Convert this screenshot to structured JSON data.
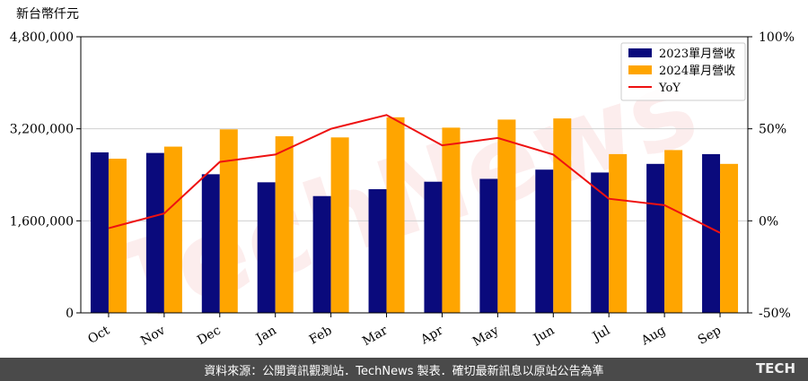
{
  "chart_data": {
    "type": "bar",
    "unit_label": "新台幣仟元",
    "categories": [
      "Oct",
      "Nov",
      "Dec",
      "Jan",
      "Feb",
      "Mar",
      "Apr",
      "May",
      "Jun",
      "Jul",
      "Aug",
      "Sep"
    ],
    "series": [
      {
        "name": "2023單月營收",
        "type": "bar",
        "axis": "left",
        "color": "#0a0a7c",
        "values": [
          2790000,
          2780000,
          2410000,
          2270000,
          2030000,
          2150000,
          2280000,
          2330000,
          2490000,
          2440000,
          2590000,
          2760000
        ]
      },
      {
        "name": "2024單月營收",
        "type": "bar",
        "axis": "left",
        "color": "#ffa500",
        "values": [
          2680000,
          2890000,
          3190000,
          3070000,
          3050000,
          3400000,
          3220000,
          3360000,
          3380000,
          2760000,
          2830000,
          2590000
        ]
      },
      {
        "name": "YoY",
        "type": "line",
        "axis": "right",
        "color": "#ee1111",
        "values": [
          -4,
          4,
          32,
          36,
          50,
          57.5,
          41,
          45,
          36,
          12,
          8.5,
          -6.5
        ]
      }
    ],
    "y_left": {
      "min": 0,
      "max": 4800000,
      "ticks": [
        "0",
        "1,600,000",
        "3,200,000",
        "4,800,000"
      ]
    },
    "y_right": {
      "min": -50,
      "max": 100,
      "ticks": [
        "-50%",
        "0%",
        "50%",
        "100%"
      ]
    },
    "grid": "horizontal",
    "legend_position": "top-right"
  },
  "watermark": "TechNews",
  "footer": {
    "source_text": "資料來源：公開資訊觀測站．TechNews 製表．確切最新訊息以原站公告為準",
    "logo_text": "TECH"
  }
}
